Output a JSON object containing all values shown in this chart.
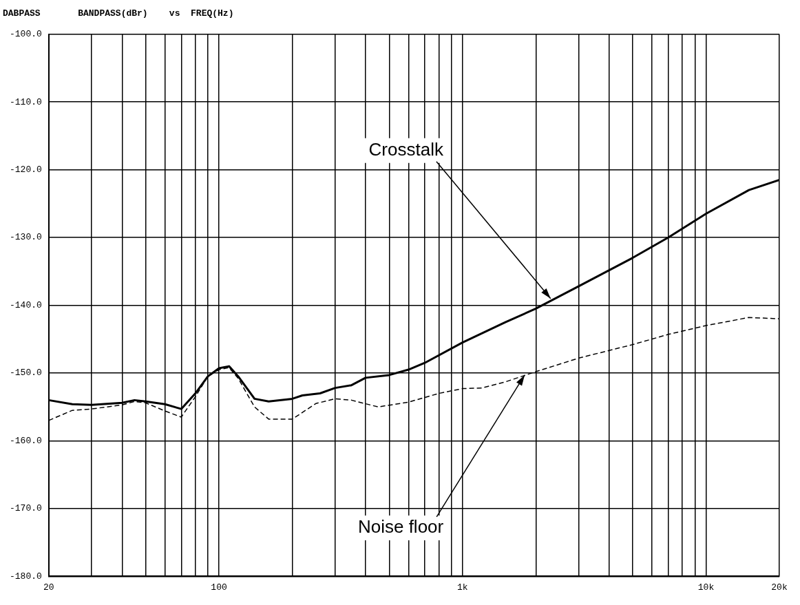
{
  "chart_data": {
    "type": "line",
    "title": "DABPASS       BANDPASS(dBr)    vs  FREQ(Hz)",
    "log": "x",
    "xlim": [
      20,
      20000
    ],
    "xticks": [
      {
        "value": 20,
        "label": "20"
      },
      {
        "value": 30,
        "label": null
      },
      {
        "value": 40,
        "label": null
      },
      {
        "value": 50,
        "label": null
      },
      {
        "value": 60,
        "label": null
      },
      {
        "value": 70,
        "label": null
      },
      {
        "value": 80,
        "label": null
      },
      {
        "value": 90,
        "label": null
      },
      {
        "value": 100,
        "label": "100"
      },
      {
        "value": 200,
        "label": null
      },
      {
        "value": 300,
        "label": null
      },
      {
        "value": 400,
        "label": null
      },
      {
        "value": 500,
        "label": null
      },
      {
        "value": 600,
        "label": null
      },
      {
        "value": 700,
        "label": null
      },
      {
        "value": 800,
        "label": null
      },
      {
        "value": 900,
        "label": null
      },
      {
        "value": 1000,
        "label": "1k"
      },
      {
        "value": 2000,
        "label": null
      },
      {
        "value": 3000,
        "label": null
      },
      {
        "value": 4000,
        "label": null
      },
      {
        "value": 5000,
        "label": null
      },
      {
        "value": 6000,
        "label": null
      },
      {
        "value": 7000,
        "label": null
      },
      {
        "value": 8000,
        "label": null
      },
      {
        "value": 9000,
        "label": null
      },
      {
        "value": 10000,
        "label": "10k"
      },
      {
        "value": 20000,
        "label": "20k"
      }
    ],
    "ylim": [
      -180,
      -100
    ],
    "yticks": [
      {
        "value": -180,
        "label": "-180.0"
      },
      {
        "value": -170,
        "label": "-170.0"
      },
      {
        "value": -160,
        "label": "-160.0"
      },
      {
        "value": -150,
        "label": "-150.0"
      },
      {
        "value": -140,
        "label": "-140.0"
      },
      {
        "value": -130,
        "label": "-130.0"
      },
      {
        "value": -120,
        "label": "-120.0"
      },
      {
        "value": -110,
        "label": "-110.0"
      },
      {
        "value": -100,
        "label": "-100.0"
      }
    ],
    "grid": true,
    "legend": false,
    "marker": "none",
    "series": [
      {
        "color": "#000000",
        "line_style": "solid",
        "x": [
          20,
          25,
          30,
          40,
          45,
          50,
          60,
          70,
          80,
          90,
          100,
          110,
          120,
          140,
          160,
          200,
          220,
          260,
          300,
          350,
          400,
          500,
          600,
          700,
          1000,
          1500,
          2000,
          3000,
          5000,
          7000,
          10000,
          15000,
          20000
        ],
        "values": [
          -154.0,
          -154.6,
          -154.7,
          -154.4,
          -154.0,
          -154.2,
          -154.6,
          -155.3,
          -153.0,
          -150.5,
          -149.3,
          -149.0,
          -150.5,
          -153.8,
          -154.2,
          -153.8,
          -153.3,
          -153.0,
          -152.2,
          -151.8,
          -150.7,
          -150.3,
          -149.5,
          -148.5,
          -145.5,
          -142.5,
          -140.5,
          -137.2,
          -133.0,
          -130.0,
          -126.5,
          -123.0,
          -121.5
        ]
      },
      {
        "color": "#000000",
        "line_style": "dashed",
        "x": [
          20,
          25,
          30,
          40,
          45,
          50,
          60,
          70,
          80,
          90,
          100,
          110,
          120,
          140,
          160,
          200,
          250,
          300,
          350,
          450,
          600,
          800,
          1000,
          1200,
          1500,
          2000,
          3000,
          5000,
          7000,
          10000,
          15000,
          20000
        ],
        "values": [
          -157.0,
          -155.5,
          -155.3,
          -154.7,
          -154.2,
          -154.4,
          -155.6,
          -156.5,
          -153.5,
          -150.5,
          -149.5,
          -149.2,
          -150.8,
          -155.0,
          -156.8,
          -156.8,
          -154.5,
          -153.8,
          -154.0,
          -155.0,
          -154.3,
          -153.0,
          -152.3,
          -152.2,
          -151.3,
          -149.8,
          -147.8,
          -145.8,
          -144.3,
          -143.0,
          -141.8,
          -142.0
        ]
      }
    ],
    "annotations": [
      {
        "text": "Crosstalk",
        "x": 2300,
        "y": -139
      },
      {
        "text": "Noise floor",
        "x": 1800,
        "y": -150.3
      }
    ]
  }
}
